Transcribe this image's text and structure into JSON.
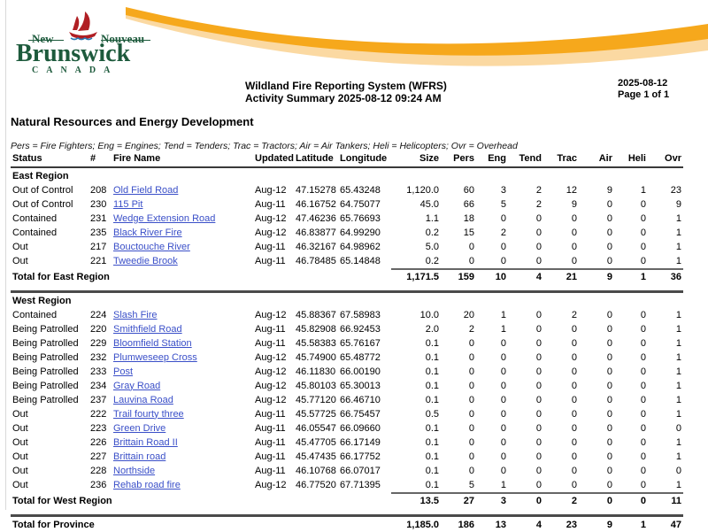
{
  "colors": {
    "brand_green": "#1d5a3c",
    "brand_red": "#b01f24",
    "swoosh_gold": "#f6a81c",
    "swoosh_light": "#fbd9a2",
    "link_blue": "#3a4fc8"
  },
  "logo": {
    "word_left": "New",
    "word_right": "Nouveau",
    "word_main": "Brunswick",
    "word_country": "CANADA"
  },
  "header": {
    "title_line1": "Wildland Fire Reporting System (WFRS)",
    "title_line2": "Activity Summary 2025-08-12 09:24 AM",
    "date": "2025-08-12",
    "page": "Page 1 of 1"
  },
  "department": "Natural Resources and Energy Development",
  "legend": "Pers = Fire Fighters; Eng = Engines; Tend = Tenders; Trac = Tractors; Air = Air Tankers; Heli = Helicopters; Ovr = Overhead",
  "table": {
    "columns": [
      "Status",
      "#",
      "Fire Name",
      "Updated",
      "Latitude",
      "Longitude",
      "Size",
      "Pers",
      "Eng",
      "Tend",
      "Trac",
      "Air",
      "Heli",
      "Ovr"
    ],
    "sections": [
      {
        "name": "East Region",
        "total_label": "Total for East Region",
        "rows": [
          [
            "Out of Control",
            "208",
            "Old Field Road",
            "Aug-12",
            "47.15278",
            "65.43248",
            "1,120.0",
            "60",
            "3",
            "2",
            "12",
            "9",
            "1",
            "23"
          ],
          [
            "Out of Control",
            "230",
            "115 Pit",
            "Aug-11",
            "46.16752",
            "64.75077",
            "45.0",
            "66",
            "5",
            "2",
            "9",
            "0",
            "0",
            "9"
          ],
          [
            "Contained",
            "231",
            "Wedge Extension Road",
            "Aug-12",
            "47.46236",
            "65.76693",
            "1.1",
            "18",
            "0",
            "0",
            "0",
            "0",
            "0",
            "1"
          ],
          [
            "Contained",
            "235",
            "Black River Fire",
            "Aug-12",
            "46.83877",
            "64.99290",
            "0.2",
            "15",
            "2",
            "0",
            "0",
            "0",
            "0",
            "1"
          ],
          [
            "Out",
            "217",
            "Bouctouche River",
            "Aug-11",
            "46.32167",
            "64.98962",
            "5.0",
            "0",
            "0",
            "0",
            "0",
            "0",
            "0",
            "1"
          ],
          [
            "Out",
            "221",
            "Tweedie Brook",
            "Aug-11",
            "46.78485",
            "65.14848",
            "0.2",
            "0",
            "0",
            "0",
            "0",
            "0",
            "0",
            "1"
          ]
        ],
        "totals": [
          "1,171.5",
          "159",
          "10",
          "4",
          "21",
          "9",
          "1",
          "36"
        ]
      },
      {
        "name": "West Region",
        "total_label": "Total for West Region",
        "rows": [
          [
            "Contained",
            "224",
            "Slash Fire",
            "Aug-12",
            "45.88367",
            "67.58983",
            "10.0",
            "20",
            "1",
            "0",
            "2",
            "0",
            "0",
            "1"
          ],
          [
            "Being Patrolled",
            "220",
            "Smithfield Road",
            "Aug-11",
            "45.82908",
            "66.92453",
            "2.0",
            "2",
            "1",
            "0",
            "0",
            "0",
            "0",
            "1"
          ],
          [
            "Being Patrolled",
            "229",
            "Bloomfield Station",
            "Aug-11",
            "45.58383",
            "65.76167",
            "0.1",
            "0",
            "0",
            "0",
            "0",
            "0",
            "0",
            "1"
          ],
          [
            "Being Patrolled",
            "232",
            "Plumweseep Cross",
            "Aug-12",
            "45.74900",
            "65.48772",
            "0.1",
            "0",
            "0",
            "0",
            "0",
            "0",
            "0",
            "1"
          ],
          [
            "Being Patrolled",
            "233",
            "Post",
            "Aug-12",
            "46.11830",
            "66.00190",
            "0.1",
            "0",
            "0",
            "0",
            "0",
            "0",
            "0",
            "1"
          ],
          [
            "Being Patrolled",
            "234",
            "Gray Road",
            "Aug-12",
            "45.80103",
            "65.30013",
            "0.1",
            "0",
            "0",
            "0",
            "0",
            "0",
            "0",
            "1"
          ],
          [
            "Being Patrolled",
            "237",
            "Lauvina Road",
            "Aug-12",
            "45.77120",
            "66.46710",
            "0.1",
            "0",
            "0",
            "0",
            "0",
            "0",
            "0",
            "1"
          ],
          [
            "Out",
            "222",
            "Trail fourty three",
            "Aug-11",
            "45.57725",
            "66.75457",
            "0.5",
            "0",
            "0",
            "0",
            "0",
            "0",
            "0",
            "1"
          ],
          [
            "Out",
            "223",
            "Green Drive",
            "Aug-11",
            "46.05547",
            "66.09660",
            "0.1",
            "0",
            "0",
            "0",
            "0",
            "0",
            "0",
            "0"
          ],
          [
            "Out",
            "226",
            "Brittain Road II",
            "Aug-11",
            "45.47705",
            "66.17149",
            "0.1",
            "0",
            "0",
            "0",
            "0",
            "0",
            "0",
            "1"
          ],
          [
            "Out",
            "227",
            "Brittain road",
            "Aug-11",
            "45.47435",
            "66.17752",
            "0.1",
            "0",
            "0",
            "0",
            "0",
            "0",
            "0",
            "1"
          ],
          [
            "Out",
            "228",
            "Northside",
            "Aug-11",
            "46.10768",
            "66.07017",
            "0.1",
            "0",
            "0",
            "0",
            "0",
            "0",
            "0",
            "0"
          ],
          [
            "Out",
            "236",
            "Rehab road fire",
            "Aug-12",
            "46.77520",
            "67.71395",
            "0.1",
            "5",
            "1",
            "0",
            "0",
            "0",
            "0",
            "1"
          ]
        ],
        "totals": [
          "13.5",
          "27",
          "3",
          "0",
          "2",
          "0",
          "0",
          "11"
        ]
      }
    ],
    "province_total": {
      "label": "Total for Province",
      "totals": [
        "1,185.0",
        "186",
        "13",
        "4",
        "23",
        "9",
        "1",
        "47"
      ]
    }
  }
}
